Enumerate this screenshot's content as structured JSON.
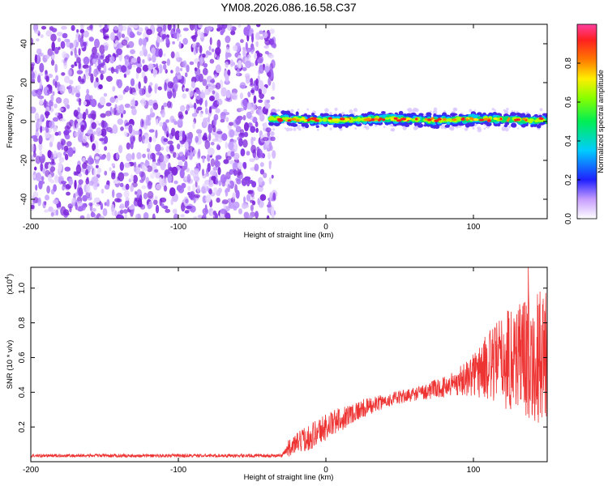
{
  "title": "YM08.2026.086.16.58.C37",
  "chart_data": [
    {
      "type": "heatmap",
      "name": "spectrogram",
      "xlabel": "Height of straight line (km)",
      "ylabel": "Frequency (Hz)",
      "xlim": [
        -200,
        150
      ],
      "ylim": [
        -50,
        50
      ],
      "xticks": [
        -200,
        -100,
        0,
        100
      ],
      "yticks": [
        -40,
        -20,
        0,
        20,
        40
      ],
      "noise_region_x": [
        -200,
        -38
      ],
      "band_region_x": [
        -38,
        150
      ],
      "band_center_hz": 1,
      "colorbar": {
        "label": "Normalized spectral amplitude",
        "range": [
          0.0,
          1.0
        ],
        "ticks": [
          "0.0",
          "0.2",
          "0.4",
          "0.6",
          "0.8"
        ]
      }
    },
    {
      "type": "line",
      "name": "snr",
      "xlabel": "Height of straight line (km)",
      "ylabel": "SNR (10 * v/v)",
      "yscale_label": "(x10",
      "yscale_exp": "4",
      "xlim": [
        -200,
        150
      ],
      "ylim": [
        0,
        1.12
      ],
      "xticks": [
        -200,
        -100,
        0,
        100
      ],
      "yticks": [
        "0.2",
        "0.4",
        "0.6",
        "0.8",
        "1.0"
      ],
      "color": "#ee3333",
      "trend_x": [
        -200,
        -30,
        -25,
        -10,
        0,
        20,
        40,
        60,
        80,
        95,
        110,
        130,
        150
      ],
      "trend_y": [
        0.035,
        0.035,
        0.08,
        0.15,
        0.2,
        0.29,
        0.35,
        0.39,
        0.43,
        0.48,
        0.55,
        0.62,
        0.6
      ],
      "noise_amp": [
        0.01,
        0.01,
        0.05,
        0.08,
        0.08,
        0.06,
        0.04,
        0.04,
        0.06,
        0.1,
        0.2,
        0.35,
        0.4
      ]
    }
  ]
}
